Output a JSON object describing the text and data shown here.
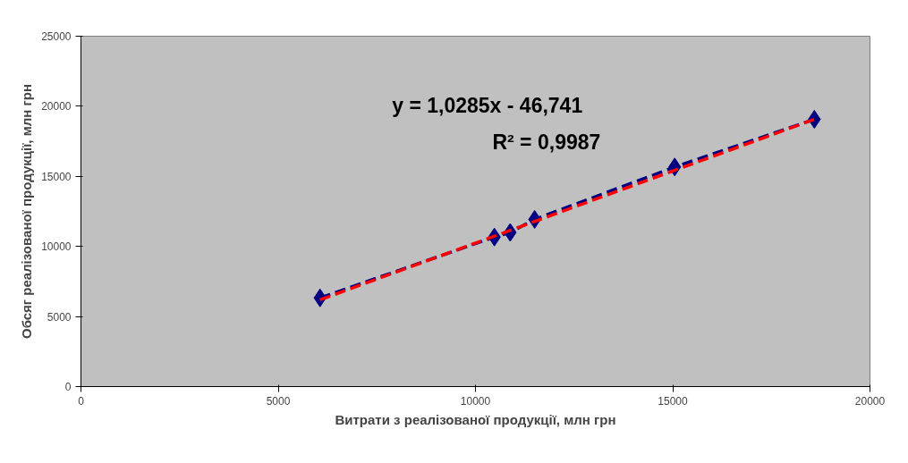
{
  "chart_data": {
    "type": "line",
    "xlabel": "Витрати з реалізованої продукції, млн грн",
    "ylabel": "Обсяг реалізованої продукції, млн грн",
    "xlim": [
      0,
      20000
    ],
    "ylim": [
      0,
      25000
    ],
    "xticks": [
      0,
      5000,
      10000,
      15000,
      20000
    ],
    "yticks": [
      0,
      5000,
      10000,
      15000,
      20000,
      25000
    ],
    "grid": false,
    "annotations": [
      "y = 1,0285x - 46,741",
      "R² = 0,9987"
    ],
    "series": [
      {
        "color": "#000080",
        "marker": "diamond",
        "line_style": "dashed",
        "x": [
          6060,
          10480,
          10880,
          11500,
          15050,
          18590
        ],
        "values": [
          6330,
          10670,
          11000,
          11930,
          15670,
          19070
        ]
      },
      {
        "color": "#ff0000",
        "marker": "none",
        "line_style": "dashed",
        "x": [
          6060,
          18590
        ],
        "values": [
          6190,
          19070
        ]
      }
    ]
  }
}
